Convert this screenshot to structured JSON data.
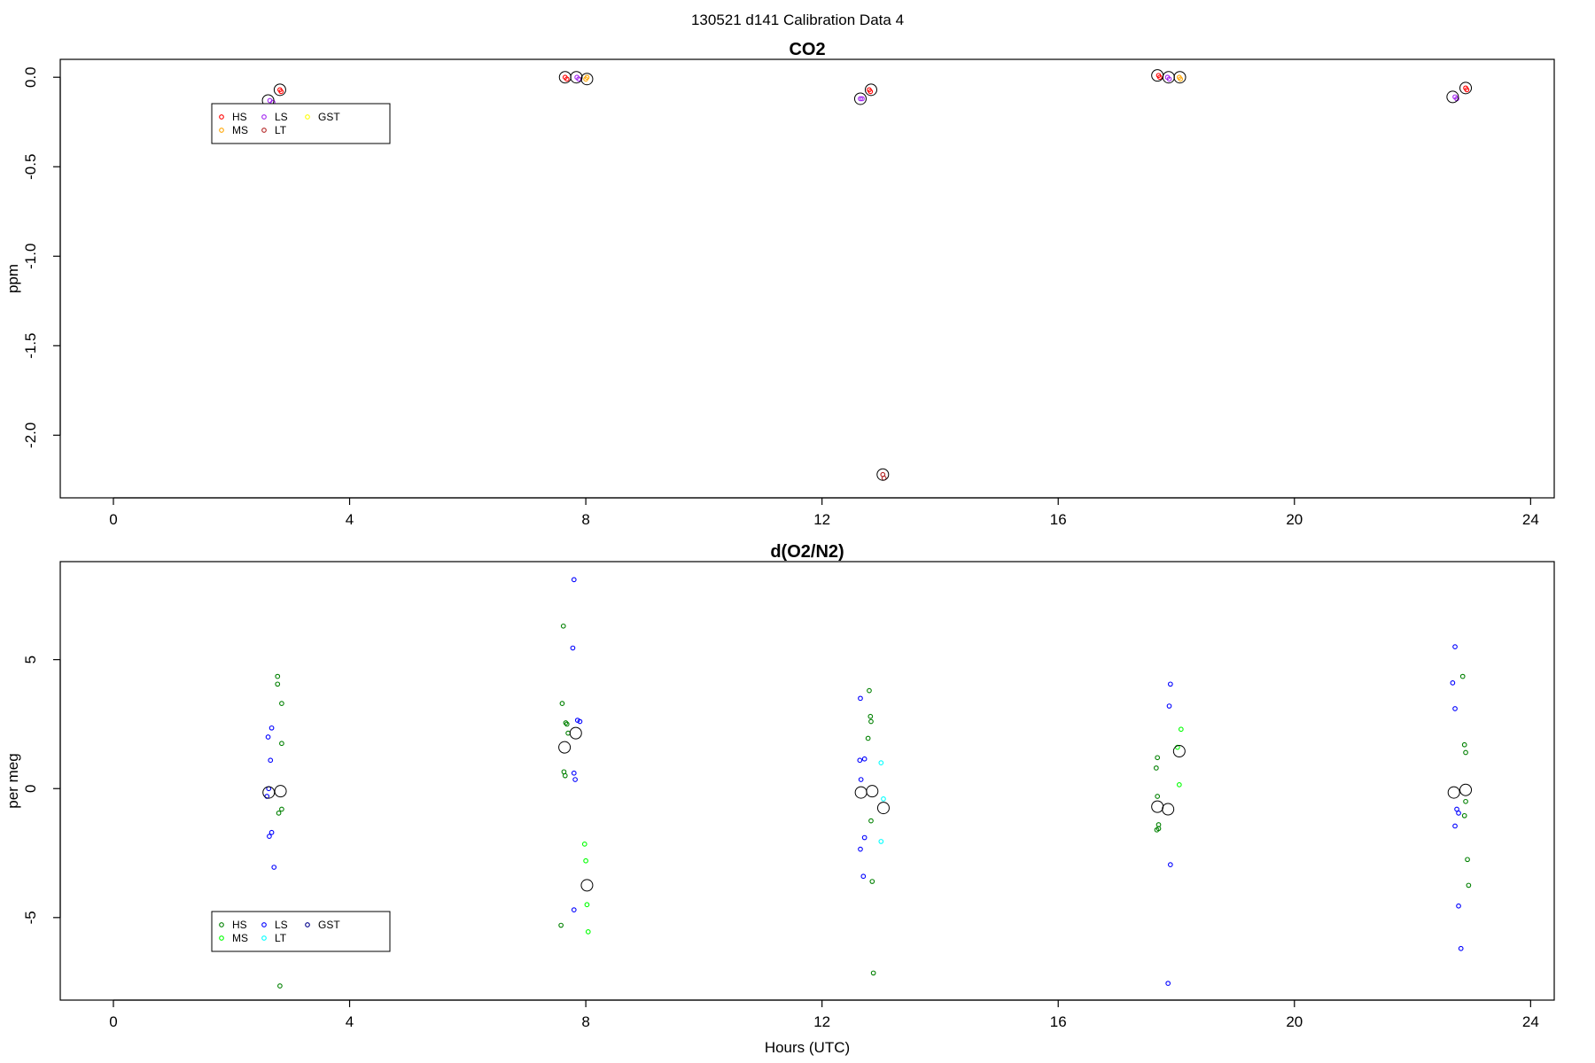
{
  "supertitle": "130521   d141   Calibration Data 4",
  "chart_data": [
    {
      "type": "scatter",
      "title": "CO2",
      "xlabel": "",
      "ylabel": "ppm",
      "xlim": [
        -0.9,
        24.4
      ],
      "ylim": [
        -2.35,
        0.1
      ],
      "xticks": [
        0,
        4,
        8,
        12,
        16,
        20,
        24
      ],
      "yticks": [
        0.0,
        -0.5,
        -1.0,
        -1.5,
        -2.0
      ],
      "ytick_labels": [
        "0.0",
        "-0.5",
        "-1.0",
        "-1.5",
        "-2.0"
      ],
      "legend": {
        "position": "top-left",
        "entries": [
          {
            "name": "HS",
            "color": "#ff0000"
          },
          {
            "name": "MS",
            "color": "#ffa500"
          },
          {
            "name": "LS",
            "color": "#a020f0"
          },
          {
            "name": "LT",
            "color": "#b22222"
          },
          {
            "name": "GST",
            "color": "#ffff00"
          }
        ]
      },
      "series": [
        {
          "name": "HS",
          "color": "#ff0000",
          "points": [
            [
              2.82,
              -0.07
            ],
            [
              2.84,
              -0.08
            ],
            [
              7.65,
              0.0
            ],
            [
              7.68,
              -0.01
            ],
            [
              12.8,
              -0.07
            ],
            [
              12.82,
              -0.08
            ],
            [
              17.7,
              0.01
            ],
            [
              17.72,
              0.0
            ],
            [
              22.9,
              -0.06
            ],
            [
              22.92,
              -0.07
            ]
          ]
        },
        {
          "name": "MS",
          "color": "#ffa500",
          "points": [
            [
              8.0,
              -0.01
            ],
            [
              8.02,
              0.0
            ],
            [
              18.05,
              0.0
            ],
            [
              18.07,
              -0.01
            ]
          ]
        },
        {
          "name": "LS",
          "color": "#a020f0",
          "points": [
            [
              2.65,
              -0.13
            ],
            [
              2.7,
              -0.14
            ],
            [
              7.85,
              0.0
            ],
            [
              7.88,
              -0.01
            ],
            [
              12.65,
              -0.12
            ],
            [
              12.68,
              -0.12
            ],
            [
              17.85,
              0.0
            ],
            [
              17.88,
              -0.01
            ],
            [
              22.72,
              -0.11
            ],
            [
              22.75,
              -0.12
            ]
          ]
        },
        {
          "name": "LT",
          "color": "#b22222",
          "points": [
            [
              13.03,
              -2.22
            ],
            [
              13.05,
              -2.24
            ]
          ]
        },
        {
          "name": "GST",
          "color": "#ffff00",
          "points": []
        }
      ],
      "means": [
        [
          2.62,
          -0.13
        ],
        [
          2.82,
          -0.07
        ],
        [
          7.65,
          0.0
        ],
        [
          7.84,
          0.0
        ],
        [
          8.02,
          -0.01
        ],
        [
          12.65,
          -0.12
        ],
        [
          12.83,
          -0.07
        ],
        [
          13.03,
          -2.22
        ],
        [
          17.68,
          0.01
        ],
        [
          17.87,
          0.0
        ],
        [
          18.06,
          0.0
        ],
        [
          22.68,
          -0.11
        ],
        [
          22.9,
          -0.06
        ]
      ]
    },
    {
      "type": "scatter",
      "title": "d(O2/N2)",
      "xlabel": "Hours (UTC)",
      "ylabel": "per meg",
      "xlim": [
        -0.9,
        24.4
      ],
      "ylim": [
        -8.2,
        8.8
      ],
      "xticks": [
        0,
        4,
        8,
        12,
        16,
        20,
        24
      ],
      "yticks": [
        5,
        0,
        -5
      ],
      "ytick_labels": [
        "5",
        "0",
        "-5"
      ],
      "legend": {
        "position": "bottom-left",
        "entries": [
          {
            "name": "HS",
            "color": "#008000"
          },
          {
            "name": "MS",
            "color": "#00ff00"
          },
          {
            "name": "LS",
            "color": "#0000ff"
          },
          {
            "name": "LT",
            "color": "#00ffff"
          },
          {
            "name": "GST",
            "color": "#00008b"
          }
        ]
      },
      "series": [
        {
          "name": "HS",
          "color": "#008000",
          "points": [
            [
              2.78,
              4.35
            ],
            [
              2.78,
              4.05
            ],
            [
              2.85,
              3.3
            ],
            [
              2.85,
              1.75
            ],
            [
              2.85,
              -0.8
            ],
            [
              2.8,
              -0.95
            ],
            [
              2.82,
              -7.65
            ],
            [
              7.6,
              3.3
            ],
            [
              7.62,
              6.3
            ],
            [
              7.66,
              2.55
            ],
            [
              7.68,
              2.5
            ],
            [
              7.7,
              2.15
            ],
            [
              7.63,
              0.65
            ],
            [
              7.65,
              0.5
            ],
            [
              7.58,
              -5.3
            ],
            [
              12.8,
              3.8
            ],
            [
              12.82,
              2.8
            ],
            [
              12.83,
              2.6
            ],
            [
              12.78,
              1.95
            ],
            [
              12.83,
              -1.25
            ],
            [
              12.85,
              -3.6
            ],
            [
              12.87,
              -7.15
            ],
            [
              17.68,
              1.2
            ],
            [
              17.66,
              0.8
            ],
            [
              17.68,
              -0.3
            ],
            [
              17.7,
              -1.4
            ],
            [
              17.7,
              -1.55
            ],
            [
              17.67,
              -1.6
            ],
            [
              22.85,
              4.35
            ],
            [
              22.88,
              1.7
            ],
            [
              22.9,
              1.4
            ],
            [
              22.9,
              -0.5
            ],
            [
              22.88,
              -1.05
            ],
            [
              22.93,
              -2.75
            ],
            [
              22.95,
              -3.75
            ]
          ]
        },
        {
          "name": "MS",
          "color": "#00ff00",
          "points": [
            [
              7.98,
              -2.15
            ],
            [
              8.0,
              -2.8
            ],
            [
              8.02,
              -4.5
            ],
            [
              8.04,
              -5.55
            ],
            [
              18.02,
              1.6
            ],
            [
              18.08,
              2.3
            ],
            [
              18.05,
              0.15
            ]
          ]
        },
        {
          "name": "LS",
          "color": "#0000ff",
          "points": [
            [
              2.62,
              2.0
            ],
            [
              2.68,
              2.35
            ],
            [
              2.66,
              1.1
            ],
            [
              2.63,
              0.0
            ],
            [
              2.6,
              -0.3
            ],
            [
              2.68,
              -1.7
            ],
            [
              2.64,
              -1.85
            ],
            [
              2.72,
              -3.05
            ],
            [
              7.8,
              8.1
            ],
            [
              7.78,
              5.45
            ],
            [
              7.86,
              2.65
            ],
            [
              7.9,
              2.6
            ],
            [
              7.8,
              0.6
            ],
            [
              7.82,
              0.35
            ],
            [
              7.8,
              -4.7
            ],
            [
              12.65,
              3.5
            ],
            [
              12.64,
              1.1
            ],
            [
              12.72,
              1.15
            ],
            [
              12.66,
              0.35
            ],
            [
              12.72,
              -1.9
            ],
            [
              12.65,
              -2.35
            ],
            [
              12.7,
              -3.4
            ],
            [
              17.9,
              4.05
            ],
            [
              17.88,
              3.2
            ],
            [
              17.9,
              -2.95
            ],
            [
              17.86,
              -7.55
            ],
            [
              22.72,
              5.5
            ],
            [
              22.68,
              4.1
            ],
            [
              22.72,
              3.1
            ],
            [
              22.75,
              -0.8
            ],
            [
              22.78,
              -0.95
            ],
            [
              22.72,
              -1.45
            ],
            [
              22.78,
              -4.55
            ],
            [
              22.82,
              -6.2
            ]
          ]
        },
        {
          "name": "LT",
          "color": "#00ffff",
          "points": [
            [
              13.0,
              1.0
            ],
            [
              13.04,
              -0.4
            ],
            [
              13.0,
              -2.05
            ]
          ]
        },
        {
          "name": "GST",
          "color": "#00008b",
          "points": []
        }
      ],
      "means": [
        [
          2.63,
          -0.15
        ],
        [
          2.83,
          -0.1
        ],
        [
          7.64,
          1.6
        ],
        [
          7.83,
          2.15
        ],
        [
          8.02,
          -3.75
        ],
        [
          12.66,
          -0.15
        ],
        [
          12.85,
          -0.1
        ],
        [
          13.04,
          -0.75
        ],
        [
          17.68,
          -0.7
        ],
        [
          17.86,
          -0.8
        ],
        [
          18.05,
          1.45
        ],
        [
          22.7,
          -0.15
        ],
        [
          22.9,
          -0.05
        ]
      ]
    }
  ]
}
